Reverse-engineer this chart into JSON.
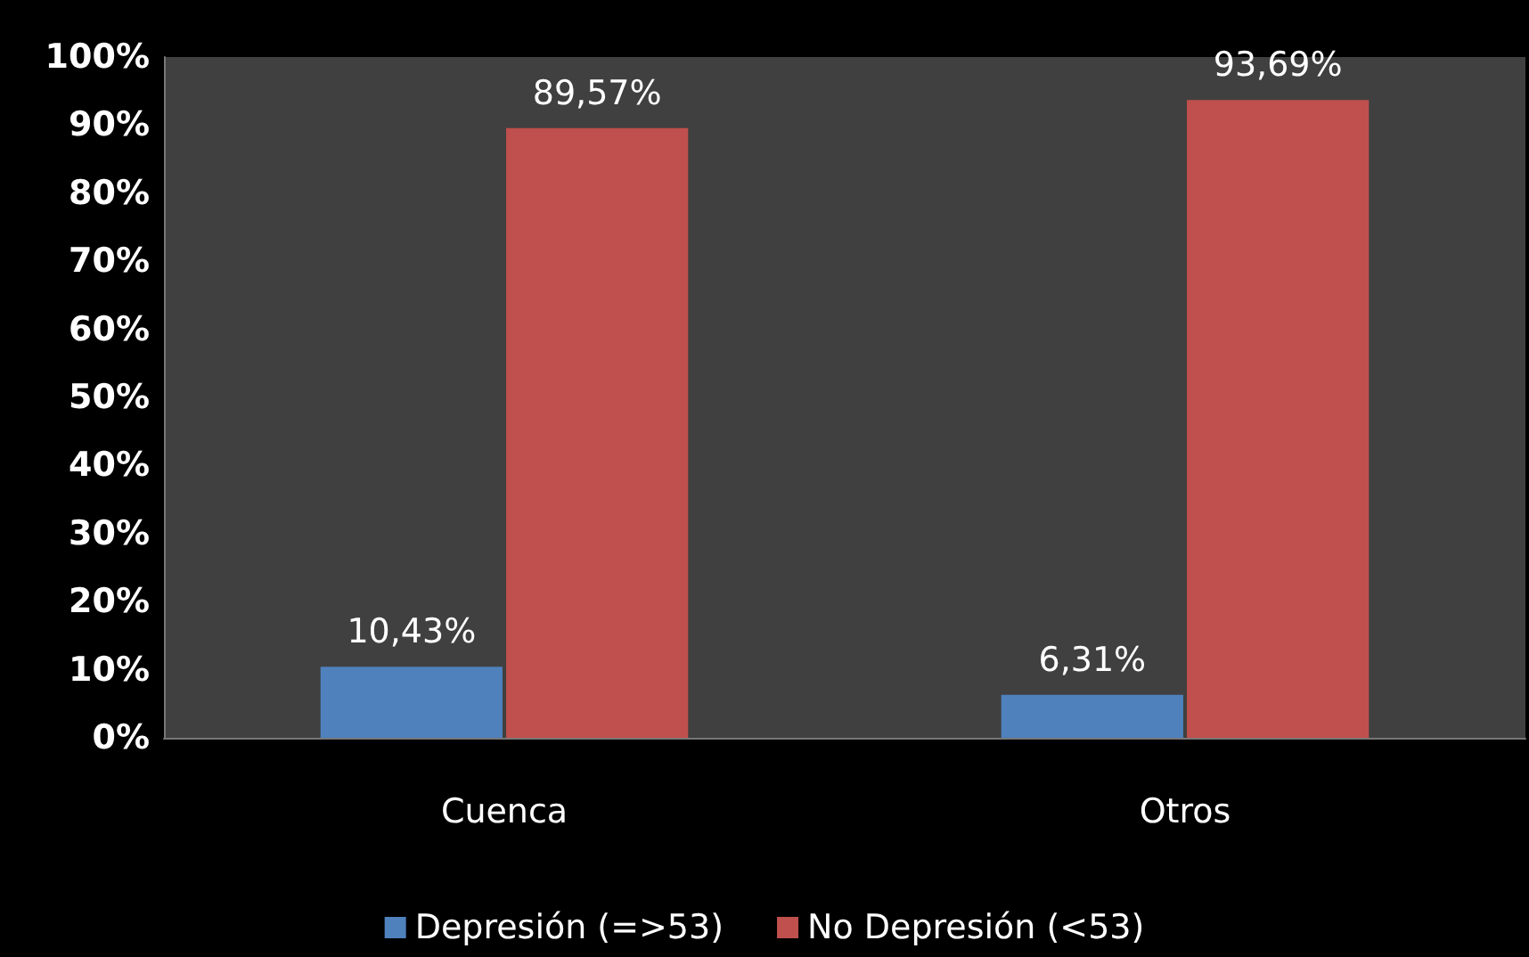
{
  "chart_data": {
    "type": "bar",
    "categories": [
      "Cuenca",
      "Otros"
    ],
    "series": [
      {
        "name": "Depresión (=>53)",
        "color": "#4f81bd",
        "values": [
          10.43,
          6.31
        ],
        "value_labels": [
          "10,43%",
          "6,31%"
        ]
      },
      {
        "name": "No Depresión (<53)",
        "color": "#c0504d",
        "values": [
          89.57,
          93.69
        ],
        "value_labels": [
          "89,57%",
          "93,69%"
        ]
      }
    ],
    "ylim": [
      0,
      100
    ],
    "yticks": [
      {
        "value": 0,
        "label": "0%"
      },
      {
        "value": 10,
        "label": "10%"
      },
      {
        "value": 20,
        "label": "20%"
      },
      {
        "value": 30,
        "label": "30%"
      },
      {
        "value": 40,
        "label": "40%"
      },
      {
        "value": 50,
        "label": "50%"
      },
      {
        "value": 60,
        "label": "60%"
      },
      {
        "value": 70,
        "label": "70%"
      },
      {
        "value": 80,
        "label": "80%"
      },
      {
        "value": 90,
        "label": "90%"
      },
      {
        "value": 100,
        "label": "100%"
      }
    ],
    "grid": false,
    "legend": "bottom"
  }
}
